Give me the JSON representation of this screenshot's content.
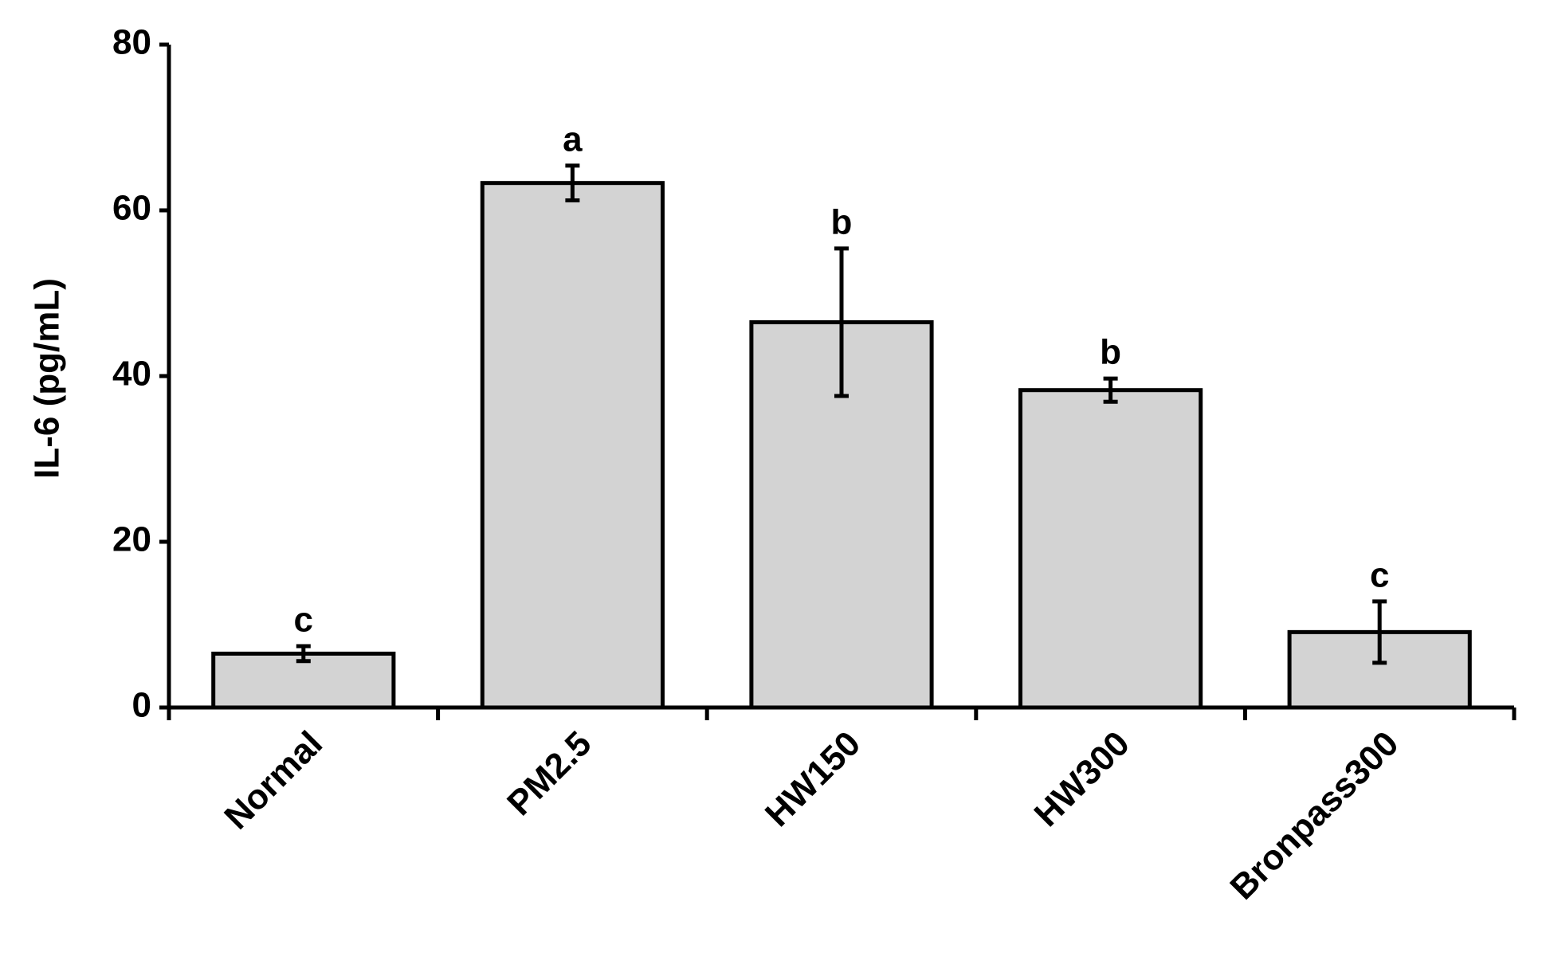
{
  "chart_data": {
    "type": "bar",
    "y_label": "IL-6 (pg/mL)",
    "categories": [
      "Normal",
      "PM2.5",
      "HW150",
      "HW300",
      "Bronpass300"
    ],
    "series": [
      {
        "color": "#d3d3d3",
        "values": [
          6.5,
          63.3,
          46.5,
          38.3,
          9.1
        ],
        "errors": [
          0.9,
          2.1,
          8.9,
          1.4,
          3.7
        ],
        "annotations": [
          "c",
          "a",
          "b",
          "b",
          "c"
        ]
      }
    ],
    "ylim": [
      0,
      80
    ],
    "yticks": [
      0,
      20,
      40,
      60,
      80
    ],
    "grid": false
  }
}
